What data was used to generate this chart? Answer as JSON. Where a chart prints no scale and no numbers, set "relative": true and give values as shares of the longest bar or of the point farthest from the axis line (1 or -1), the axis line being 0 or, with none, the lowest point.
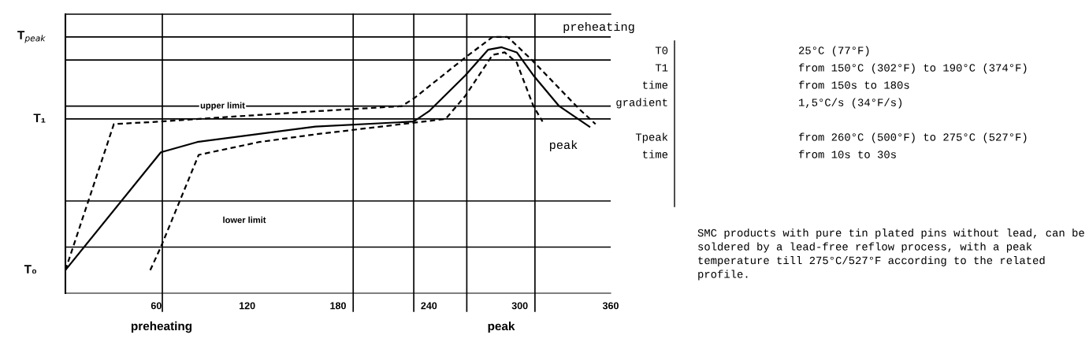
{
  "chart_data": [
    {
      "type": "line",
      "relative": true,
      "xlim": [
        0,
        360
      ],
      "xticks": [
        60,
        120,
        180,
        240,
        300,
        360
      ],
      "grid": false,
      "series": [
        {
          "color": "#000000",
          "line_style": "solid",
          "x": [
            0,
            63,
            87,
            165,
            230,
            240,
            264,
            279,
            288,
            298,
            309,
            326,
            346
          ],
          "values": [
            0.09,
            0.55,
            0.59,
            0.65,
            0.67,
            0.71,
            0.85,
            0.95,
            0.96,
            0.94,
            0.85,
            0.73,
            0.65
          ]
        },
        {
          "color": "#000000",
          "line_style": "dashed",
          "x": [
            0,
            32,
            63,
            113,
            165,
            222,
            230,
            264,
            282,
            292,
            308,
            339,
            350
          ],
          "values": [
            0.09,
            0.66,
            0.67,
            0.69,
            0.71,
            0.73,
            0.76,
            0.92,
            1.0,
            1.0,
            0.91,
            0.72,
            0.66
          ]
        },
        {
          "color": "#000000",
          "line_style": "dashed",
          "x": [
            56,
            63,
            88,
            128,
            165,
            251,
            264,
            282,
            290,
            298,
            309,
            315
          ],
          "values": [
            0.09,
            0.18,
            0.54,
            0.59,
            0.62,
            0.68,
            0.77,
            0.93,
            0.94,
            0.9,
            0.73,
            0.67
          ]
        }
      ],
      "ref_lines": [
        {
          "axis": "y",
          "value": 1.0,
          "label": "T$_{peak}$"
        },
        {
          "axis": "y",
          "value": 0.91
        },
        {
          "axis": "y",
          "value": 0.73
        },
        {
          "axis": "y",
          "value": 0.68,
          "label": "T₁"
        },
        {
          "axis": "y",
          "value": 0.36
        },
        {
          "axis": "y",
          "value": 0.18
        },
        {
          "axis": "x",
          "value": 64
        },
        {
          "axis": "x",
          "value": 190
        },
        {
          "axis": "x",
          "value": 230
        },
        {
          "axis": "x",
          "value": 265
        },
        {
          "axis": "x",
          "value": 310
        }
      ],
      "annotations": [
        {
          "text": "T₀",
          "x": 0,
          "y": 0.09
        },
        {
          "text": "upper limit",
          "x": 89,
          "y": 0.73
        },
        "lower limit",
        "preheating",
        "peak",
        "preheating",
        "peak"
      ]
    },
    {
      "type": "other",
      "annotations": [
        "T0",
        "T1",
        "time",
        "gradient",
        "Tpeak",
        "time",
        "25°C (77°F)",
        "from 150°C (302°F) to 190°C (374°F)",
        "from 150s to 180s",
        "1,5°C/s (34°F/s)",
        "from 260°C (500°F) to 275°C (527°F)",
        "from 10s to 30s",
        "SMC products with pure tin plated pins without lead, can be soldered by a lead-free reflow process, with a peak temperature till 275°C/527°F according to the related profile."
      ]
    }
  ]
}
